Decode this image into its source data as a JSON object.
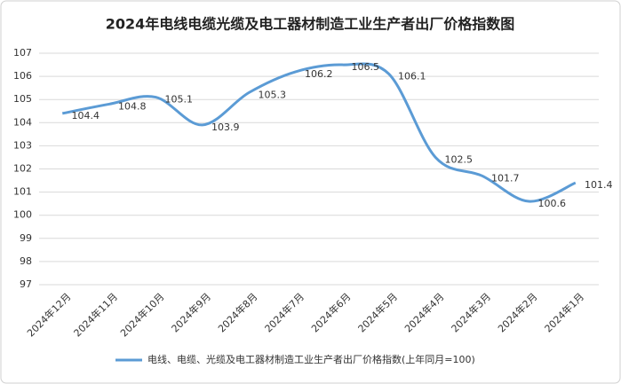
{
  "chart_data": {
    "type": "line",
    "title": "2024年电线电缆光缆及电工器材制造工业生产者出厂价格指数图",
    "categories": [
      "2024年12月",
      "2024年11月",
      "2024年10月",
      "2024年9月",
      "2024年8月",
      "2024年7月",
      "2024年6月",
      "2024年5月",
      "2024年4月",
      "2024年3月",
      "2024年2月",
      "2024年1月"
    ],
    "series": [
      {
        "name": "电线、电缆、光缆及电工器材制造工业生产者出厂价格指数(上年同月=100)",
        "color": "#5b9bd5",
        "values": [
          104.4,
          104.8,
          105.1,
          103.9,
          105.3,
          106.2,
          106.5,
          106.1,
          102.5,
          101.7,
          100.6,
          101.4
        ]
      }
    ],
    "ylim": [
      97,
      107
    ],
    "yticks": [
      97,
      98,
      99,
      100,
      101,
      102,
      103,
      104,
      105,
      106,
      107
    ],
    "grid": true,
    "legend": "bottom"
  }
}
